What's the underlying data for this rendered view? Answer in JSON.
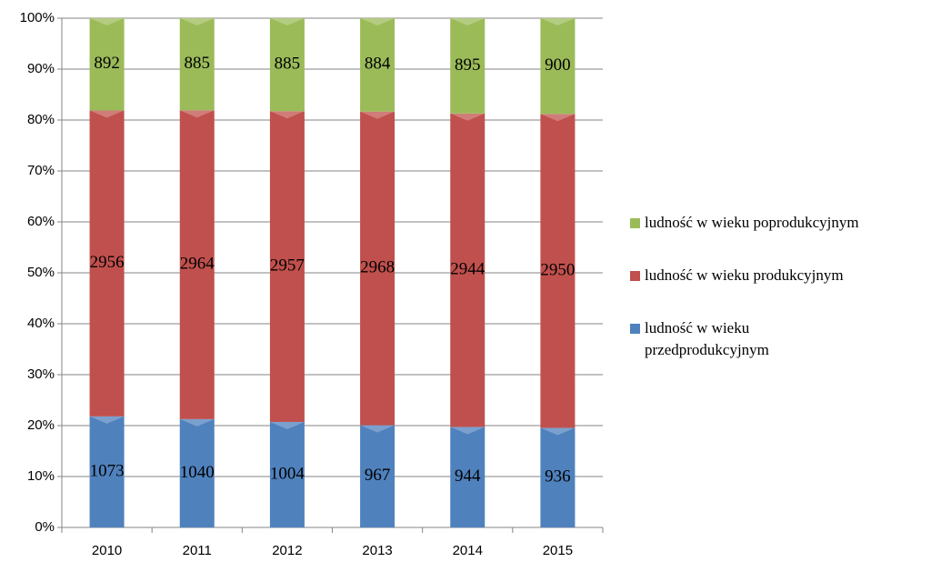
{
  "chart_data": {
    "type": "bar",
    "stacking": "percent",
    "categories": [
      "2010",
      "2011",
      "2012",
      "2013",
      "2014",
      "2015"
    ],
    "series": [
      {
        "name": "ludność w wieku przedprodukcyjnym",
        "color": "#4f81bd",
        "values": [
          1073,
          1040,
          1004,
          967,
          944,
          936
        ]
      },
      {
        "name": "ludność w wieku produkcyjnym",
        "color": "#c0504d",
        "values": [
          2956,
          2964,
          2957,
          2968,
          2944,
          2950
        ]
      },
      {
        "name": "ludność w wieku poprodukcyjnym",
        "color": "#9bbb59",
        "values": [
          892,
          885,
          885,
          884,
          895,
          900
        ]
      }
    ],
    "ylim": [
      0,
      100
    ],
    "yticks": [
      {
        "value": 0,
        "label": "0%"
      },
      {
        "value": 10,
        "label": "10%"
      },
      {
        "value": 20,
        "label": "20%"
      },
      {
        "value": 30,
        "label": "30%"
      },
      {
        "value": 40,
        "label": "40%"
      },
      {
        "value": 50,
        "label": "50%"
      },
      {
        "value": 60,
        "label": "60%"
      },
      {
        "value": 70,
        "label": "70%"
      },
      {
        "value": 80,
        "label": "80%"
      },
      {
        "value": 90,
        "label": "90%"
      },
      {
        "value": 100,
        "label": "100%"
      }
    ],
    "grid": true,
    "legend": "right"
  }
}
